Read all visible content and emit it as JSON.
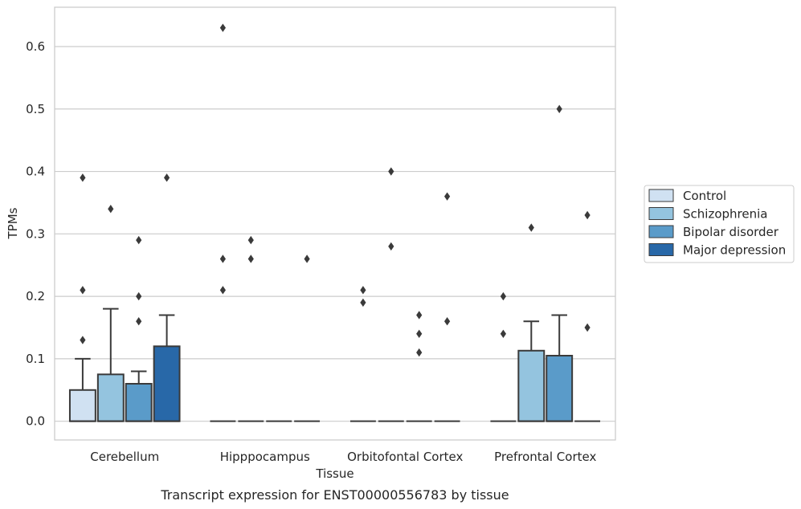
{
  "chart_data": {
    "type": "box",
    "caption": "Transcript expression for ENST00000556783 by tissue",
    "xlabel": "Tissue",
    "ylabel": "TPMs",
    "ylim": [
      -0.03,
      0.663
    ],
    "yticks": [
      "0.0",
      "0.1",
      "0.2",
      "0.3",
      "0.4",
      "0.5",
      "0.6"
    ],
    "grid": "horizontal",
    "legend_position": "right",
    "categories": [
      "Cerebellum",
      "Hipppocampus",
      "Orbitofontal Cortex",
      "Prefrontal Cortex"
    ],
    "series": [
      {
        "name": "Control",
        "color": "#d0e1f2",
        "boxes": [
          {
            "q1": 0.0,
            "median": 0.0,
            "q3": 0.05,
            "whisker_low": 0.0,
            "whisker_high": 0.1,
            "outliers": [
              0.13,
              0.21,
              0.39
            ]
          },
          {
            "q1": 0.0,
            "median": 0.0,
            "q3": 0.0,
            "whisker_low": 0.0,
            "whisker_high": 0.0,
            "outliers": [
              0.21,
              0.26,
              0.63
            ]
          },
          {
            "q1": 0.0,
            "median": 0.0,
            "q3": 0.0,
            "whisker_low": 0.0,
            "whisker_high": 0.0,
            "outliers": [
              0.19,
              0.21
            ]
          },
          {
            "q1": 0.0,
            "median": 0.0,
            "q3": 0.0,
            "whisker_low": 0.0,
            "whisker_high": 0.0,
            "outliers": [
              0.14,
              0.2
            ]
          }
        ]
      },
      {
        "name": "Schizophrenia",
        "color": "#94c4df",
        "boxes": [
          {
            "q1": 0.0,
            "median": 0.0,
            "q3": 0.075,
            "whisker_low": 0.0,
            "whisker_high": 0.18,
            "outliers": [
              0.34
            ]
          },
          {
            "q1": 0.0,
            "median": 0.0,
            "q3": 0.0,
            "whisker_low": 0.0,
            "whisker_high": 0.0,
            "outliers": [
              0.26,
              0.29
            ]
          },
          {
            "q1": 0.0,
            "median": 0.0,
            "q3": 0.0,
            "whisker_low": 0.0,
            "whisker_high": 0.0,
            "outliers": [
              0.28,
              0.4
            ]
          },
          {
            "q1": 0.0,
            "median": 0.0,
            "q3": 0.113,
            "whisker_low": 0.0,
            "whisker_high": 0.16,
            "outliers": [
              0.31
            ]
          }
        ]
      },
      {
        "name": "Bipolar disorder",
        "color": "#5a9bc9",
        "boxes": [
          {
            "q1": 0.0,
            "median": 0.0,
            "q3": 0.06,
            "whisker_low": 0.0,
            "whisker_high": 0.08,
            "outliers": [
              0.16,
              0.2,
              0.29
            ]
          },
          {
            "q1": 0.0,
            "median": 0.0,
            "q3": 0.0,
            "whisker_low": 0.0,
            "whisker_high": 0.0,
            "outliers": []
          },
          {
            "q1": 0.0,
            "median": 0.0,
            "q3": 0.0,
            "whisker_low": 0.0,
            "whisker_high": 0.0,
            "outliers": [
              0.11,
              0.14,
              0.17
            ]
          },
          {
            "q1": 0.0,
            "median": 0.0,
            "q3": 0.105,
            "whisker_low": 0.0,
            "whisker_high": 0.17,
            "outliers": [
              0.5
            ]
          }
        ]
      },
      {
        "name": "Major depression",
        "color": "#2868a8",
        "boxes": [
          {
            "q1": 0.0,
            "median": 0.0,
            "q3": 0.12,
            "whisker_low": 0.0,
            "whisker_high": 0.17,
            "outliers": [
              0.39
            ]
          },
          {
            "q1": 0.0,
            "median": 0.0,
            "q3": 0.0,
            "whisker_low": 0.0,
            "whisker_high": 0.0,
            "outliers": [
              0.26
            ]
          },
          {
            "q1": 0.0,
            "median": 0.0,
            "q3": 0.0,
            "whisker_low": 0.0,
            "whisker_high": 0.0,
            "outliers": [
              0.16,
              0.36
            ]
          },
          {
            "q1": 0.0,
            "median": 0.0,
            "q3": 0.0,
            "whisker_low": 0.0,
            "whisker_high": 0.0,
            "outliers": [
              0.15,
              0.33
            ]
          }
        ]
      }
    ]
  }
}
